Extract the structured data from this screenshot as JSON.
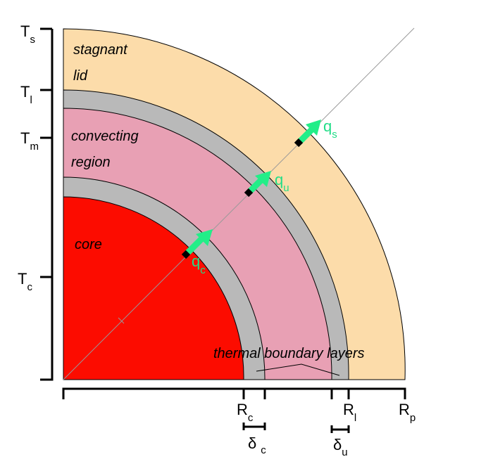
{
  "regions": {
    "lid_line1": "stagnant",
    "lid_line2": "lid",
    "convect_line1": "convecting",
    "convect_line2": "region",
    "core": "core",
    "tbl": "thermal boundary layers"
  },
  "temperature_axis": {
    "ts_main": "T",
    "ts_sub": "s",
    "tl_main": "T",
    "tl_sub": "l",
    "tm_main": "T",
    "tm_sub": "m",
    "tc_main": "T",
    "tc_sub": "c"
  },
  "radius_axis": {
    "rc_main": "R",
    "rc_sub": "c",
    "rl_main": "R",
    "rl_sub": "l",
    "rp_main": "R",
    "rp_sub": "p",
    "dc_main": "δ",
    "dc_sub": "c",
    "du_main": "δ",
    "du_sub": "u"
  },
  "fluxes": {
    "qc_main": "q",
    "qc_sub": "c",
    "qu_main": "q",
    "qu_sub": "u",
    "qs_main": "q",
    "qs_sub": "s"
  },
  "colors": {
    "lid": "#fcdcaa",
    "tbl": "#b9b9b9",
    "mantle": "#e8a0b4",
    "core": "#fc0c00",
    "arrow": "#22ee88"
  }
}
